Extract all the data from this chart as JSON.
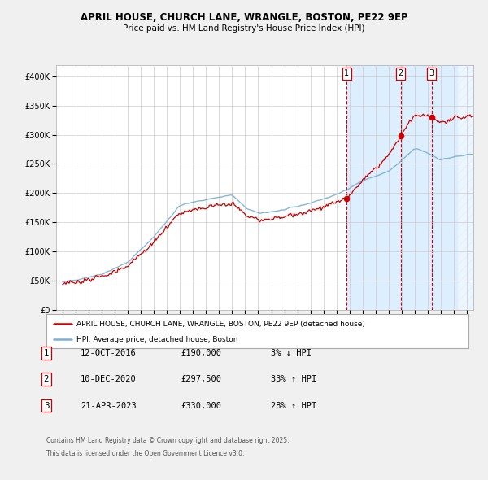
{
  "title1": "APRIL HOUSE, CHURCH LANE, WRANGLE, BOSTON, PE22 9EP",
  "title2": "Price paid vs. HM Land Registry's House Price Index (HPI)",
  "legend_label1": "APRIL HOUSE, CHURCH LANE, WRANGLE, BOSTON, PE22 9EP (detached house)",
  "legend_label2": "HPI: Average price, detached house, Boston",
  "sales": [
    {
      "num": 1,
      "date": "12-OCT-2016",
      "price": 190000,
      "change": "3% ↓ HPI",
      "year": 2016.79
    },
    {
      "num": 2,
      "date": "10-DEC-2020",
      "price": 297500,
      "change": "33% ↑ HPI",
      "year": 2020.94
    },
    {
      "num": 3,
      "date": "21-APR-2023",
      "price": 330000,
      "change": "28% ↑ HPI",
      "year": 2023.31
    }
  ],
  "footnote1": "Contains HM Land Registry data © Crown copyright and database right 2025.",
  "footnote2": "This data is licensed under the Open Government Licence v3.0.",
  "hpi_color": "#7bafd4",
  "price_color": "#cc0000",
  "background_color": "#f0f0f0",
  "plot_bg_color": "#ffffff",
  "sale_bg_color": "#ddeeff",
  "grid_color": "#cccccc",
  "ylim": [
    0,
    420000
  ],
  "xlim_start": 1994.5,
  "xlim_end": 2026.5,
  "hatch_start": 2025.25
}
